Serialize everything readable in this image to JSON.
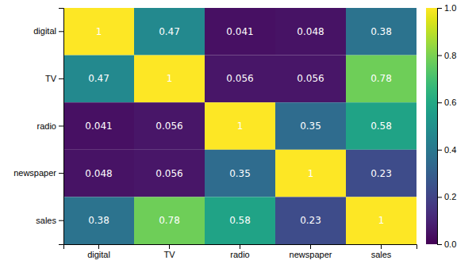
{
  "chart_data": {
    "type": "heatmap",
    "categories": [
      "digital",
      "TV",
      "radio",
      "newspaper",
      "sales"
    ],
    "matrix": [
      [
        1.0,
        0.47,
        0.041,
        0.048,
        0.38
      ],
      [
        0.47,
        1.0,
        0.056,
        0.056,
        0.78
      ],
      [
        0.041,
        0.056,
        1.0,
        0.35,
        0.58
      ],
      [
        0.048,
        0.056,
        0.35,
        1.0,
        0.23
      ],
      [
        0.38,
        0.78,
        0.58,
        0.23,
        1.0
      ]
    ],
    "data_labels": true,
    "color": "viridis",
    "color_range": [
      0.0,
      1.0
    ],
    "color_ticks": [
      {
        "value": 0.0,
        "label": "0.0"
      },
      0.2,
      0.4,
      0.6,
      0.8,
      {
        "value": 1.0,
        "label": "1.0"
      }
    ]
  }
}
